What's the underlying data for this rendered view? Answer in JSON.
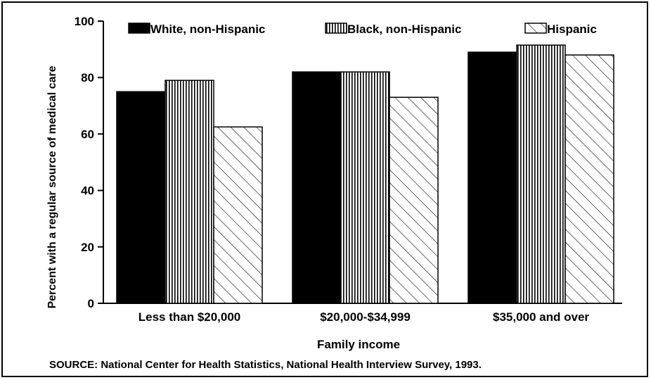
{
  "chart_data": {
    "type": "bar",
    "title": "",
    "xlabel": "Family income",
    "ylabel": "Percent with a regular source of medical care",
    "categories": [
      "Less than $20,000",
      "$20,000-$34,999",
      "$35,000 and over"
    ],
    "series": [
      {
        "name": "White, non-Hispanic",
        "values": [
          75,
          82,
          89
        ],
        "pattern": "solid"
      },
      {
        "name": "Black, non-Hispanic",
        "values": [
          79,
          82,
          91.5
        ],
        "pattern": "vertical-lines"
      },
      {
        "name": "Hispanic",
        "values": [
          62.5,
          73,
          88
        ],
        "pattern": "diagonal-lines"
      }
    ],
    "ylim": [
      0,
      100
    ],
    "yticks": [
      0,
      20,
      40,
      60,
      80,
      100
    ],
    "legend_position": "top",
    "grid": false,
    "colors": {
      "bar": "#000000",
      "background": "#ffffff"
    }
  },
  "source_note": "SOURCE: National Center for Health Statistics, National Health Interview Survey, 1993."
}
